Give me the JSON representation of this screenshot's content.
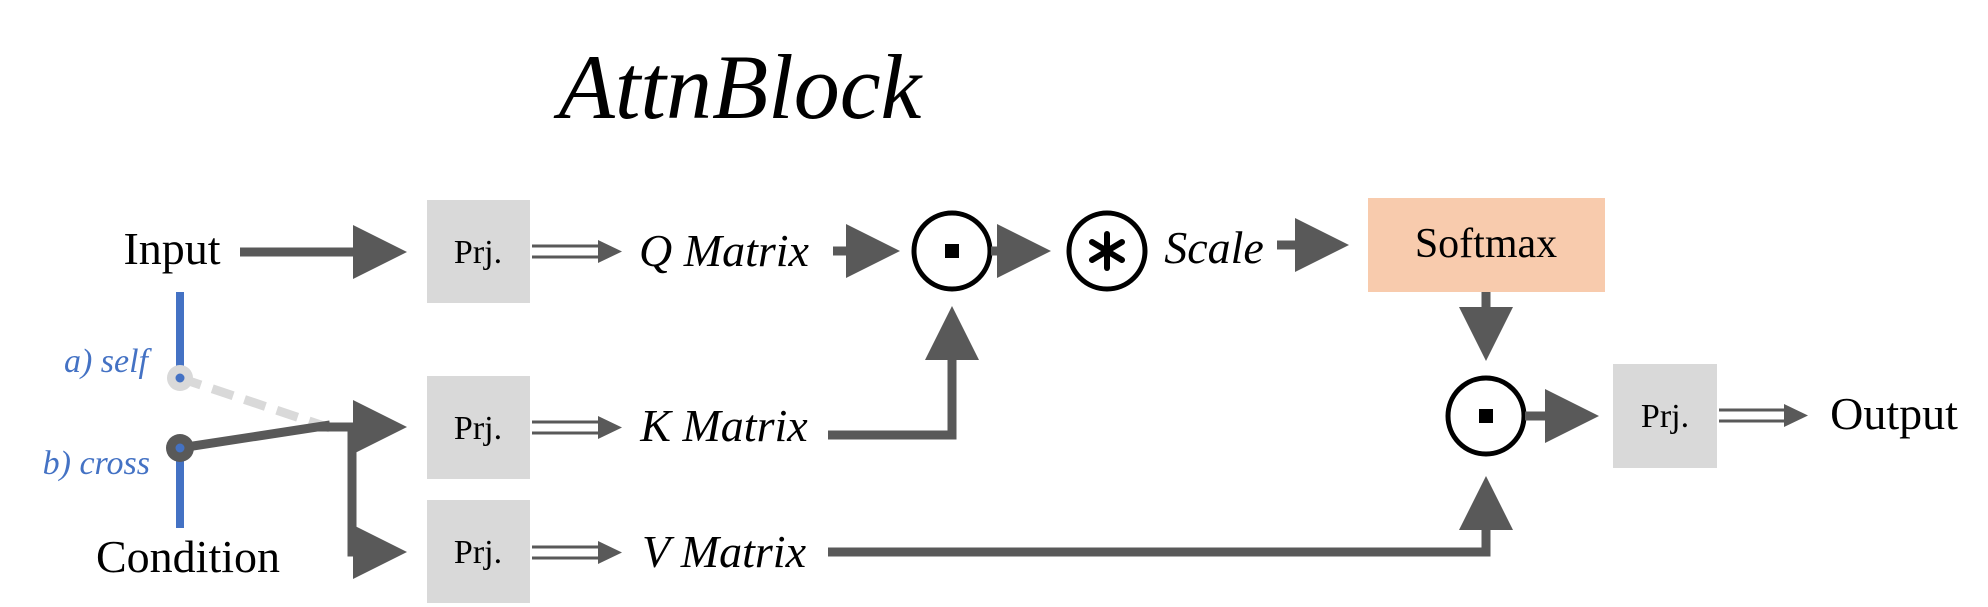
{
  "title": "AttnBlock",
  "inputs": {
    "input_label": "Input",
    "condition_label": "Condition",
    "self_label": "a) self",
    "cross_label": "b) cross"
  },
  "projections": {
    "q_label": "Prj.",
    "k_label": "Prj.",
    "v_label": "Prj.",
    "out_label": "Prj."
  },
  "matrices": {
    "q": "Q Matrix",
    "k": "K Matrix",
    "v": "V Matrix"
  },
  "ops": {
    "scale_label": "Scale",
    "softmax_label": "Softmax",
    "output_label": "Output"
  },
  "colors": {
    "arrow": "#595959",
    "prj_box": "#d9d9d9",
    "softmax_box": "#f8cbad",
    "switch_blue": "#4472c4",
    "self_dashed": "#d9d9d9"
  }
}
